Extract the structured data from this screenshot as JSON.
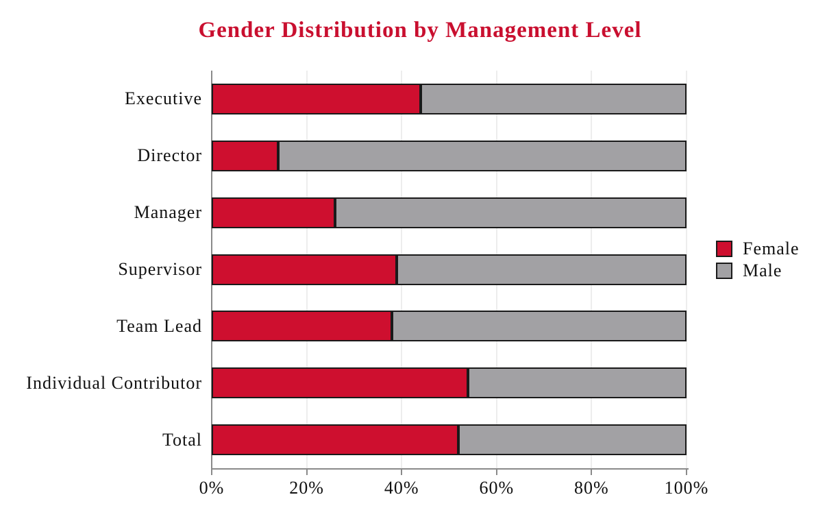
{
  "title": "Gender Distribution by Management Level",
  "title_color": "#C90F2F",
  "chart_data": {
    "type": "bar",
    "orientation": "horizontal",
    "stacked": true,
    "title": "Gender Distribution by Management Level",
    "categories": [
      "Executive",
      "Director",
      "Manager",
      "Supervisor",
      "Team Lead",
      "Individual Contributor",
      "Total"
    ],
    "series": [
      {
        "name": "Female",
        "color": "#CE0F2F",
        "values": [
          44,
          14,
          26,
          39,
          38,
          54,
          52
        ]
      },
      {
        "name": "Male",
        "color": "#A2A1A4",
        "values": [
          56,
          86,
          74,
          61,
          62,
          46,
          48
        ]
      }
    ],
    "unit": "%",
    "xlim": [
      0,
      100
    ],
    "x_ticks": [
      0,
      20,
      40,
      60,
      80,
      100
    ],
    "x_tick_labels": [
      "0%",
      "20%",
      "40%",
      "60%",
      "80%",
      "100%"
    ],
    "xlabel": "",
    "ylabel": "",
    "grid": "vertical-light",
    "gridline_color": "#EDEDED",
    "axis_color": "#8A8A8A",
    "bar_border_color": "#1A1A1A",
    "legend_position": "right",
    "legend_entries": [
      "Female",
      "Male"
    ]
  }
}
